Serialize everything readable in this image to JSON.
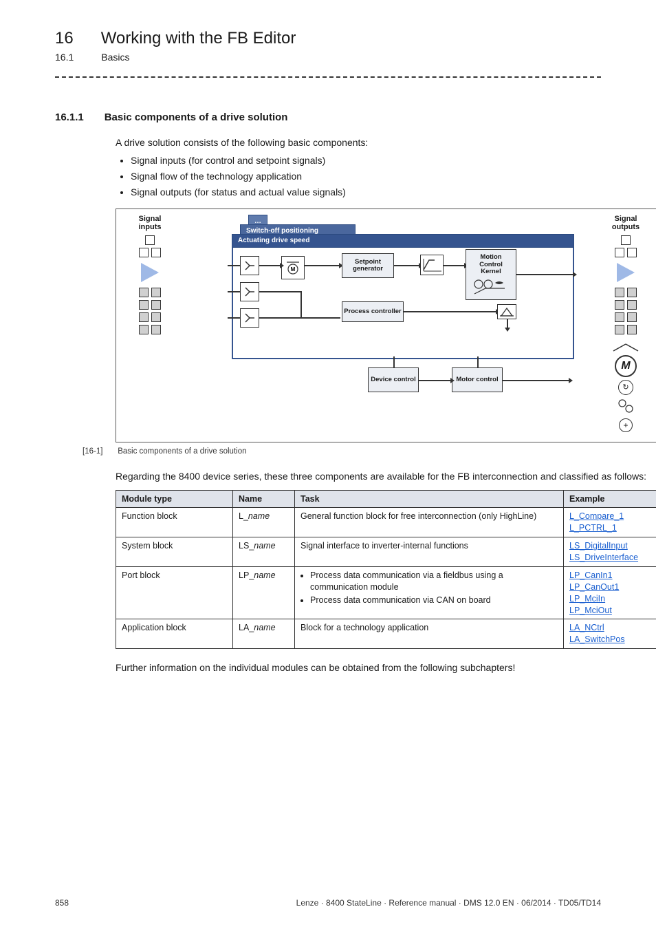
{
  "header": {
    "chapter_num": "16",
    "chapter_title": "Working with the FB Editor",
    "sub_num": "16.1",
    "sub_title": "Basics"
  },
  "section": {
    "num": "16.1.1",
    "title": "Basic components of a drive solution"
  },
  "intro": "A drive solution consists of the following basic components:",
  "bullets": [
    "Signal inputs (for control and setpoint signals)",
    "Signal flow of the technology application",
    "Signal outputs (for status and actual value signals)"
  ],
  "figure": {
    "left_label": "Signal\ninputs",
    "right_label": "Signal\noutputs",
    "tab_ellipsis": "…",
    "tab_sub": "Switch-off positioning",
    "tab_main": "Actuating drive speed",
    "boxes": {
      "setpoint": "Setpoint\ngenerator",
      "mck": "Motion\nControl\nKernel",
      "process": "Process\ncontroller",
      "device": "Device\ncontrol",
      "motor": "Motor\ncontrol"
    },
    "motor_M": "M",
    "caption_tag": "[16-1]",
    "caption_text": "Basic components of a drive solution"
  },
  "after_figure": "Regarding the 8400 device series, these three components are available for the FB interconnection and classified as follows:",
  "table": {
    "headers": [
      "Module type",
      "Name",
      "Task",
      "Example"
    ],
    "rows": [
      {
        "module": "Function block",
        "prefix": "L_",
        "suffix": "name",
        "task_text": "General function block for free interconnection (only HighLine)",
        "examples": [
          "L_Compare_1",
          "L_PCTRL_1"
        ]
      },
      {
        "module": "System block",
        "prefix": "LS_",
        "suffix": "name",
        "task_text": "Signal interface to inverter-internal functions",
        "examples": [
          "LS_DigitalInput",
          "LS_DriveInterface"
        ]
      },
      {
        "module": "Port block",
        "prefix": "LP_",
        "suffix": "name",
        "task_items": [
          "Process data communication via a fieldbus using a communication module",
          "Process data communication via CAN on board"
        ],
        "examples": [
          "LP_CanIn1",
          "LP_CanOut1",
          "LP_MciIn",
          "LP_MciOut"
        ]
      },
      {
        "module": "Application block",
        "prefix": "LA_",
        "suffix": "name",
        "task_text": "Block for a technology application",
        "examples": [
          "LA_NCtrl",
          "LA_SwitchPos"
        ]
      }
    ]
  },
  "closing": "Further information on the individual modules can be obtained from the following subchapters!",
  "footer": {
    "page": "858",
    "doc": "Lenze · 8400 StateLine · Reference manual · DMS 12.0 EN · 06/2014 · TD05/TD14"
  },
  "colors": {
    "header_bg": "#dfe3ea",
    "link": "#1a5fd0",
    "tab_dark": "#35548f"
  }
}
